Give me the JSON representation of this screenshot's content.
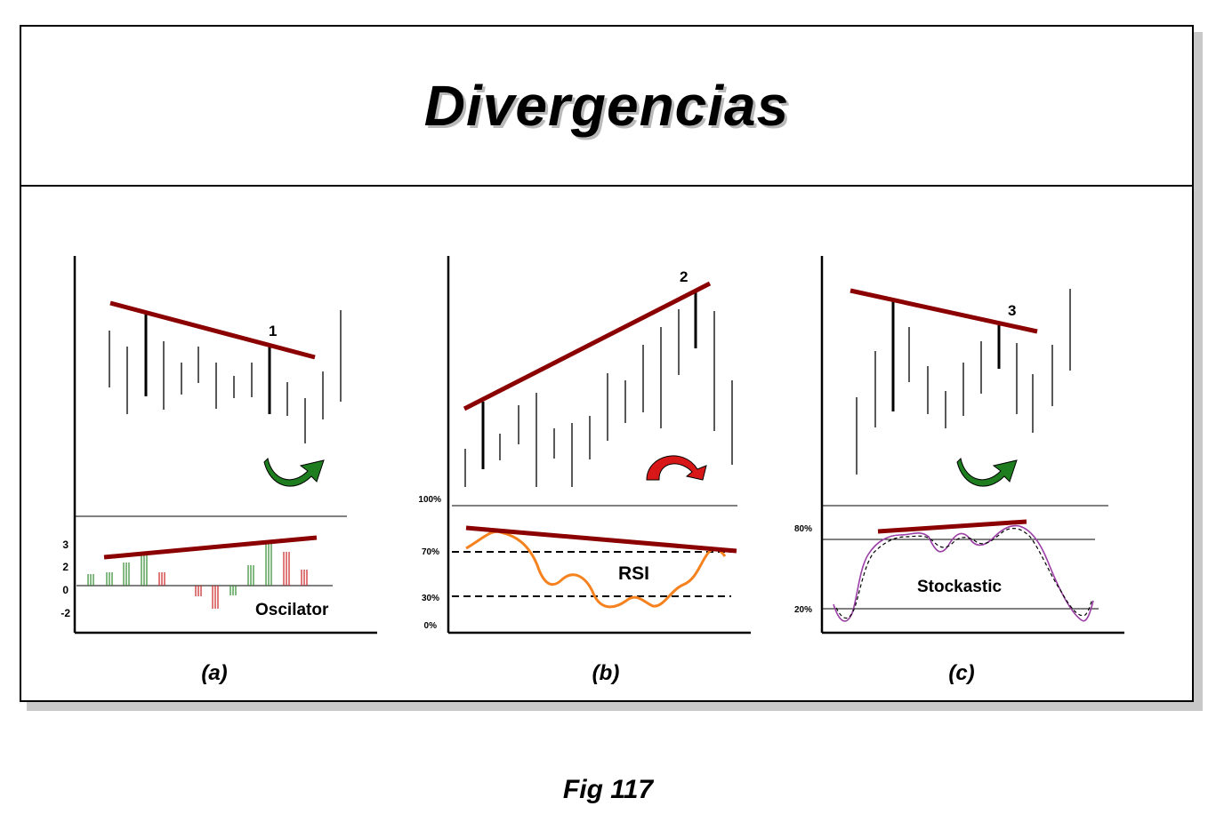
{
  "title": "Divergencias",
  "caption": "Fig 117",
  "panels": [
    {
      "id": "a",
      "label": "(a)",
      "point_marker": "1",
      "indicator_name": "Oscilator",
      "indicator_scale": [
        "3",
        "2",
        "0",
        "-2"
      ],
      "arrow": "green-up-turn-icon"
    },
    {
      "id": "b",
      "label": "(b)",
      "point_marker": "2",
      "indicator_name": "RSI",
      "indicator_scale": [
        "100%",
        "70%",
        "30%",
        "0%"
      ],
      "arrow": "red-down-turn-icon"
    },
    {
      "id": "c",
      "label": "(c)",
      "point_marker": "3",
      "indicator_name": "Stockastic",
      "indicator_scale": [
        "80%",
        "20%"
      ],
      "arrow": "green-up-turn-icon"
    }
  ],
  "colors": {
    "trendline": "#8b0000",
    "bars": "#000000",
    "histogram_positive": "#2e8b2e",
    "histogram_negative": "#cc2020",
    "rsi_line": "#f5821f",
    "stochastic_line": "#9b3fa6",
    "bullish_arrow": "#1e7d1e",
    "bearish_arrow": "#d81818"
  }
}
